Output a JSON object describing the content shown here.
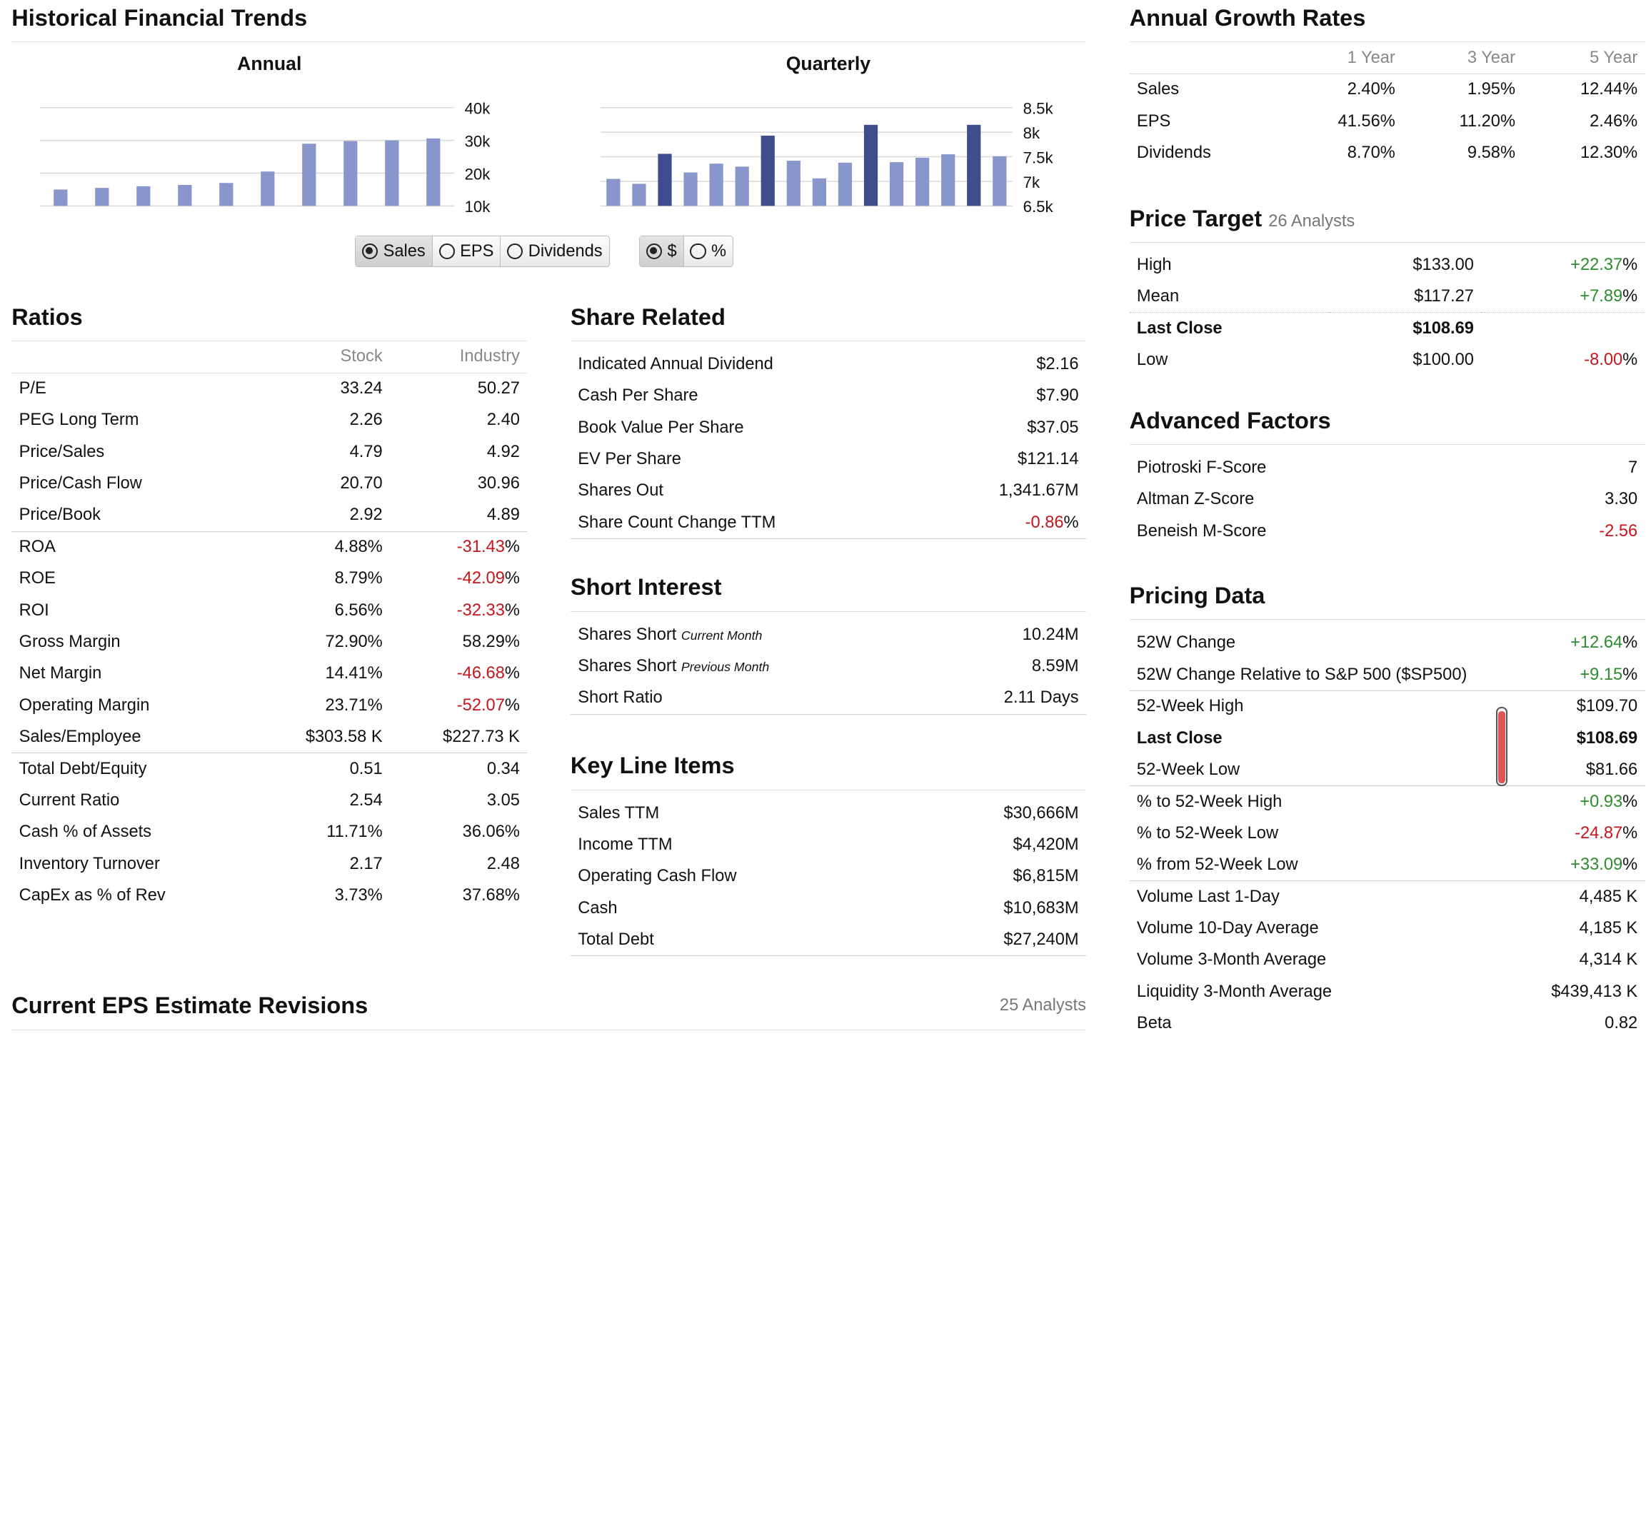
{
  "historical": {
    "title": "Historical Financial Trends",
    "annual_title": "Annual",
    "quarterly_title": "Quarterly",
    "metric_options": [
      "Sales",
      "EPS",
      "Dividends"
    ],
    "metric_selected": "Sales",
    "unit_options": [
      "$",
      "%"
    ],
    "unit_selected": "$"
  },
  "chart_data": [
    {
      "type": "bar",
      "title": "Annual",
      "yticks": [
        "40k",
        "30k",
        "20k",
        "10k"
      ],
      "ylim": [
        10000,
        40000
      ],
      "values": [
        15000,
        15500,
        16000,
        16400,
        17000,
        20500,
        29000,
        29800,
        30000,
        30600
      ],
      "highlight": [],
      "bar_color": "#8896cb",
      "highlight_color": "#3f4d8c"
    },
    {
      "type": "bar",
      "title": "Quarterly",
      "yticks": [
        "8.5k",
        "8k",
        "7.5k",
        "7k",
        "6.5k"
      ],
      "ylim": [
        6500,
        8500
      ],
      "values": [
        7050,
        6950,
        7560,
        7180,
        7360,
        7300,
        7930,
        7420,
        7060,
        7380,
        8150,
        7390,
        7480,
        7550,
        8150,
        7510
      ],
      "highlight": [
        2,
        6,
        10,
        14
      ],
      "bar_color": "#8896cb",
      "highlight_color": "#3f4d8c"
    }
  ],
  "ratios": {
    "title": "Ratios",
    "col_stock": "Stock",
    "col_industry": "Industry",
    "rows": [
      {
        "label": "P/E",
        "stock": "33.24",
        "industry": "50.27",
        "industry_pct": "",
        "neg": false,
        "sep": false
      },
      {
        "label": "PEG Long Term",
        "stock": "2.26",
        "industry": "2.40",
        "industry_pct": "",
        "neg": false,
        "sep": false
      },
      {
        "label": "Price/Sales",
        "stock": "4.79",
        "industry": "4.92",
        "industry_pct": "",
        "neg": false,
        "sep": false
      },
      {
        "label": "Price/Cash Flow",
        "stock": "20.70",
        "industry": "30.96",
        "industry_pct": "",
        "neg": false,
        "sep": false
      },
      {
        "label": "Price/Book",
        "stock": "2.92",
        "industry": "4.89",
        "industry_pct": "",
        "neg": false,
        "sep": true
      },
      {
        "label": "ROA",
        "stock": "4.88%",
        "industry": "-31.43",
        "industry_pct": "%",
        "neg": true,
        "sep": false
      },
      {
        "label": "ROE",
        "stock": "8.79%",
        "industry": "-42.09",
        "industry_pct": "%",
        "neg": true,
        "sep": false
      },
      {
        "label": "ROI",
        "stock": "6.56%",
        "industry": "-32.33",
        "industry_pct": "%",
        "neg": true,
        "sep": false
      },
      {
        "label": "Gross Margin",
        "stock": "72.90%",
        "industry": "58.29%",
        "industry_pct": "",
        "neg": false,
        "sep": false
      },
      {
        "label": "Net Margin",
        "stock": "14.41%",
        "industry": "-46.68",
        "industry_pct": "%",
        "neg": true,
        "sep": false
      },
      {
        "label": "Operating Margin",
        "stock": "23.71%",
        "industry": "-52.07",
        "industry_pct": "%",
        "neg": true,
        "sep": false
      },
      {
        "label": "Sales/Employee",
        "stock": "$303.58 K",
        "industry": "$227.73 K",
        "industry_pct": "",
        "neg": false,
        "sep": true
      },
      {
        "label": "Total Debt/Equity",
        "stock": "0.51",
        "industry": "0.34",
        "industry_pct": "",
        "neg": false,
        "sep": false
      },
      {
        "label": "Current Ratio",
        "stock": "2.54",
        "industry": "3.05",
        "industry_pct": "",
        "neg": false,
        "sep": false
      },
      {
        "label": "Cash % of Assets",
        "stock": "11.71%",
        "industry": "36.06%",
        "industry_pct": "",
        "neg": false,
        "sep": false
      },
      {
        "label": "Inventory Turnover",
        "stock": "2.17",
        "industry": "2.48",
        "industry_pct": "",
        "neg": false,
        "sep": false
      },
      {
        "label": "CapEx as % of Rev",
        "stock": "3.73%",
        "industry": "37.68%",
        "industry_pct": "",
        "neg": false,
        "sep": false
      }
    ]
  },
  "share_related": {
    "title": "Share Related",
    "rows": [
      {
        "label": "Indicated Annual Dividend",
        "value": "$2.16",
        "pct": "",
        "neg": false
      },
      {
        "label": "Cash Per Share",
        "value": "$7.90",
        "pct": "",
        "neg": false
      },
      {
        "label": "Book Value Per Share",
        "value": "$37.05",
        "pct": "",
        "neg": false
      },
      {
        "label": "EV Per Share",
        "value": "$121.14",
        "pct": "",
        "neg": false
      },
      {
        "label": "Shares Out",
        "value": "1,341.67M",
        "pct": "",
        "neg": false
      },
      {
        "label": "Share Count Change TTM",
        "value": "-0.86",
        "pct": "%",
        "neg": true
      }
    ]
  },
  "short_interest": {
    "title": "Short Interest",
    "rows": [
      {
        "label": "Shares Short",
        "note": "Current Month",
        "value": "10.24M"
      },
      {
        "label": "Shares Short",
        "note": "Previous Month",
        "value": "8.59M"
      },
      {
        "label": "Short Ratio",
        "note": "",
        "value": "2.11 Days"
      }
    ]
  },
  "key_line_items": {
    "title": "Key Line Items",
    "rows": [
      {
        "label": "Sales TTM",
        "value": "$30,666M"
      },
      {
        "label": "Income TTM",
        "value": "$4,420M"
      },
      {
        "label": "Operating Cash Flow",
        "value": "$6,815M"
      },
      {
        "label": "Cash",
        "value": "$10,683M"
      },
      {
        "label": "Total Debt",
        "value": "$27,240M"
      }
    ]
  },
  "eps_revisions": {
    "title": "Current EPS Estimate Revisions",
    "analysts": "25 Analysts"
  },
  "growth": {
    "title": "Annual Growth Rates",
    "cols": [
      "1 Year",
      "3 Year",
      "5 Year"
    ],
    "rows": [
      {
        "label": "Sales",
        "v1": "2.40%",
        "v3": "1.95%",
        "v5": "12.44%"
      },
      {
        "label": "EPS",
        "v1": "41.56%",
        "v3": "11.20%",
        "v5": "2.46%"
      },
      {
        "label": "Dividends",
        "v1": "8.70%",
        "v3": "9.58%",
        "v5": "12.30%"
      }
    ]
  },
  "price_target": {
    "title": "Price Target",
    "analysts": "26 Analysts",
    "rows": [
      {
        "label": "High",
        "value": "$133.00",
        "change": "+22.37",
        "pct": "%",
        "dir": "pos",
        "bold": false,
        "dotted": false
      },
      {
        "label": "Mean",
        "value": "$117.27",
        "change": "+7.89",
        "pct": "%",
        "dir": "pos",
        "bold": false,
        "dotted": true
      },
      {
        "label": "Last Close",
        "value": "$108.69",
        "change": "",
        "pct": "",
        "dir": "",
        "bold": true,
        "dotted": false
      },
      {
        "label": "Low",
        "value": "$100.00",
        "change": "-8.00",
        "pct": "%",
        "dir": "neg",
        "bold": false,
        "dotted": false
      }
    ]
  },
  "advanced": {
    "title": "Advanced Factors",
    "rows": [
      {
        "label": "Piotroski F-Score",
        "value": "7",
        "neg": false
      },
      {
        "label": "Altman Z-Score",
        "value": "3.30",
        "neg": false
      },
      {
        "label": "Beneish M-Score",
        "value": "-2.56",
        "neg": true
      }
    ]
  },
  "pricing": {
    "title": "Pricing Data",
    "range_fraction": 0.97,
    "rows": [
      {
        "label": "52W Change",
        "value": "+12.64",
        "pct": "%",
        "dir": "pos",
        "bold": false,
        "sep": false
      },
      {
        "label": "52W Change Relative to S&P 500 ($SP500)",
        "value": "+9.15",
        "pct": "%",
        "dir": "pos",
        "bold": false,
        "sep": true
      },
      {
        "label": "52-Week High",
        "value": "$109.70",
        "pct": "",
        "dir": "",
        "bold": false,
        "sep": false
      },
      {
        "label": "Last Close",
        "value": "$108.69",
        "pct": "",
        "dir": "",
        "bold": true,
        "sep": false
      },
      {
        "label": "52-Week Low",
        "value": "$81.66",
        "pct": "",
        "dir": "",
        "bold": false,
        "sep": true
      },
      {
        "label": "% to 52-Week High",
        "value": "+0.93",
        "pct": "%",
        "dir": "pos",
        "bold": false,
        "sep": false
      },
      {
        "label": "% to 52-Week Low",
        "value": "-24.87",
        "pct": "%",
        "dir": "neg",
        "bold": false,
        "sep": false
      },
      {
        "label": "% from 52-Week Low",
        "value": "+33.09",
        "pct": "%",
        "dir": "pos",
        "bold": false,
        "sep": true
      },
      {
        "label": "Volume Last 1-Day",
        "value": "4,485 K",
        "pct": "",
        "dir": "",
        "bold": false,
        "sep": false
      },
      {
        "label": "Volume 10-Day Average",
        "value": "4,185 K",
        "pct": "",
        "dir": "",
        "bold": false,
        "sep": false
      },
      {
        "label": "Volume 3-Month Average",
        "value": "4,314 K",
        "pct": "",
        "dir": "",
        "bold": false,
        "sep": false
      },
      {
        "label": "Liquidity 3-Month Average",
        "value": "$439,413 K",
        "pct": "",
        "dir": "",
        "bold": false,
        "sep": false
      },
      {
        "label": "Beta",
        "value": "0.82",
        "pct": "",
        "dir": "",
        "bold": false,
        "sep": false
      }
    ]
  }
}
